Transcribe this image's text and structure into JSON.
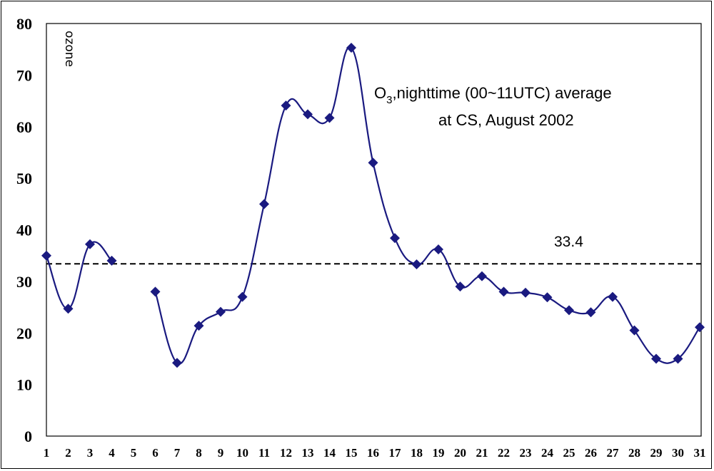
{
  "chart_data": {
    "type": "line",
    "title_line1_prefix": "O",
    "title_subscript": "3",
    "title_line1_rest": ",nighttime (00~11UTC) average",
    "title_line2": "at CS, August 2002",
    "ylabel": "ozone",
    "xlabel": "",
    "ylim": [
      0,
      80
    ],
    "y_ticks": [
      "0",
      "10",
      "20",
      "30",
      "40",
      "50",
      "60",
      "70",
      "80"
    ],
    "x_ticks": [
      "1",
      "2",
      "3",
      "4",
      "5",
      "6",
      "7",
      "8",
      "9",
      "10",
      "11",
      "12",
      "13",
      "14",
      "15",
      "16",
      "17",
      "18",
      "19",
      "20",
      "21",
      "22",
      "23",
      "24",
      "25",
      "26",
      "27",
      "28",
      "29",
      "30",
      "31"
    ],
    "grid": false,
    "series": [
      {
        "color": "#1a1a80",
        "x": [
          1,
          2,
          3,
          4,
          5,
          6,
          7,
          8,
          9,
          10,
          11,
          12,
          13,
          14,
          15,
          16,
          17,
          18,
          19,
          20,
          21,
          22,
          23,
          24,
          25,
          26,
          27,
          28,
          29,
          30,
          31
        ],
        "values": [
          35,
          24.7,
          37.2,
          34,
          null,
          28,
          14.2,
          21.4,
          24.1,
          27,
          45,
          64.1,
          62.4,
          61.7,
          75.3,
          53,
          38.4,
          33.3,
          36.2,
          29,
          31,
          28,
          27.8,
          26.9,
          24.4,
          24,
          27,
          20.5,
          15,
          15,
          21.1
        ]
      }
    ],
    "average_line": {
      "value": 33.4,
      "label": "33.4",
      "style": "dashed",
      "color": "#000000"
    }
  }
}
